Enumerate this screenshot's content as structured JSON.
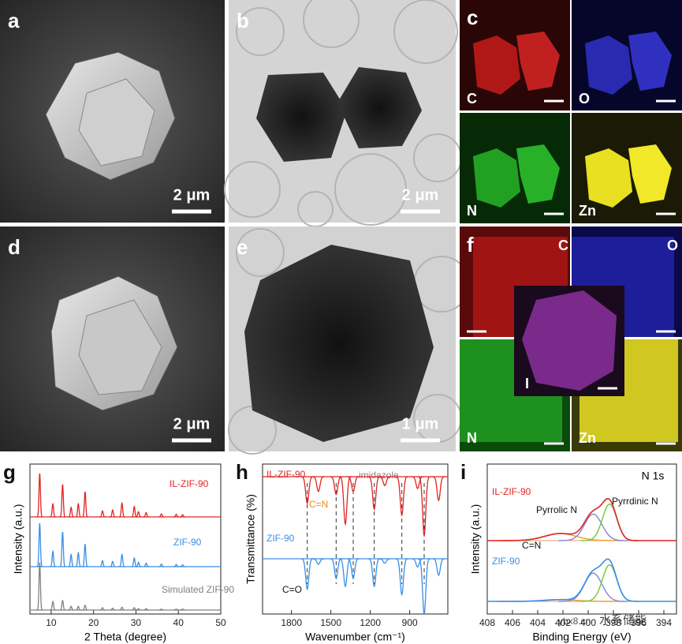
{
  "panels": [
    {
      "label": "a",
      "scale_bar": "2 μm"
    },
    {
      "label": "b",
      "scale_bar": "2 μm"
    },
    {
      "label": "c",
      "maps": [
        "C",
        "O",
        "N",
        "Zn"
      ]
    },
    {
      "label": "d",
      "scale_bar": "2 μm"
    },
    {
      "label": "e",
      "scale_bar": "1 μm"
    },
    {
      "label": "f",
      "maps": [
        "C",
        "O",
        "N",
        "Zn",
        "I"
      ]
    }
  ],
  "watermark": [
    "ybx8.cn",
    "水系储能"
  ],
  "chart_data": [
    {
      "type": "xrd",
      "label": "g",
      "xlabel": "2 Theta (degree)",
      "ylabel": "Intensity (a.u.)",
      "xlim": [
        5,
        50
      ],
      "xticks": [
        10,
        20,
        30,
        40,
        50
      ],
      "x": [
        7.3,
        10.4,
        12.7,
        14.7,
        16.4,
        18.0,
        22.1,
        24.5,
        26.7,
        29.6,
        30.6,
        32.4,
        36.0,
        39.5,
        41.0
      ],
      "series": [
        {
          "name": "IL-ZIF-90",
          "color": "#e02424",
          "values": [
            100,
            30,
            75,
            22,
            30,
            58,
            14,
            16,
            32,
            24,
            12,
            10,
            7,
            6,
            5
          ]
        },
        {
          "name": "ZIF-90",
          "color": "#3a8ee6",
          "values": [
            100,
            35,
            80,
            28,
            32,
            52,
            14,
            12,
            28,
            20,
            10,
            8,
            6,
            5,
            4
          ]
        },
        {
          "name": "Simulated ZIF-90",
          "color": "#808080",
          "values": [
            100,
            18,
            20,
            8,
            8,
            10,
            5,
            4,
            6,
            5,
            3,
            3,
            2,
            2,
            2
          ]
        }
      ]
    },
    {
      "type": "ftir",
      "label": "h",
      "xlabel": "Wavenumber (cm⁻¹)",
      "ylabel": "Transmittance (%)",
      "xlim": [
        2020,
        610
      ],
      "xticks": [
        1800,
        1500,
        1200,
        900
      ],
      "annotations": [
        "imidazole",
        "C=N",
        "C=O"
      ],
      "guide_lines": [
        1680,
        1460,
        1330,
        1170,
        960,
        790
      ],
      "x": [
        1680,
        1595,
        1460,
        1390,
        1330,
        1170,
        1090,
        960,
        840,
        790,
        680
      ],
      "series": [
        {
          "name": "IL-ZIF-90",
          "color": "#e02424",
          "values": [
            45,
            25,
            30,
            80,
            25,
            55,
            15,
            65,
            20,
            100,
            40
          ]
        },
        {
          "name": "ZIF-90",
          "color": "#3a8ee6",
          "values": [
            55,
            10,
            35,
            50,
            35,
            50,
            8,
            65,
            15,
            100,
            30
          ]
        }
      ]
    },
    {
      "type": "xps",
      "label": "i",
      "title": "N 1s",
      "xlabel": "Binding Energy (eV)",
      "ylabel": "Intensity (a.u.)",
      "xlim": [
        408,
        393
      ],
      "xticks": [
        408,
        406,
        404,
        402,
        400,
        398,
        396,
        394
      ],
      "x": [
        402.2,
        399.6,
        398.3
      ],
      "components": [
        "C=N",
        "Pyrrolic N",
        "Pyrrdinic N"
      ],
      "component_colors": [
        "#f0a030",
        "#8c8cd8",
        "#7ac943"
      ],
      "series": [
        {
          "name": "IL-ZIF-90",
          "color": "#e02424",
          "values": [
            12,
            45,
            62
          ]
        },
        {
          "name": "ZIF-90",
          "color": "#3a8ee6",
          "values": [
            3,
            48,
            62
          ]
        }
      ]
    }
  ]
}
